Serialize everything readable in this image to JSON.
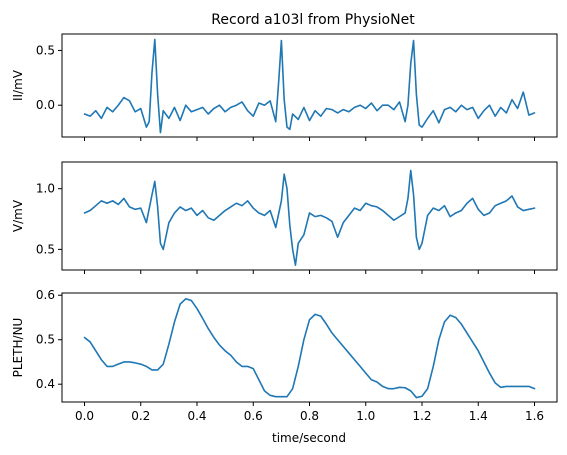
{
  "chart_data": {
    "type": "line",
    "title": "Record a103l from PhysioNet",
    "xlabel": "time/second",
    "xlim": [
      -0.08,
      1.68
    ],
    "x_ticks": [
      0.0,
      0.2,
      0.4,
      0.6,
      0.8,
      1.0,
      1.2,
      1.4,
      1.6
    ],
    "x_tick_labels": [
      "0.0",
      "0.2",
      "0.4",
      "0.6",
      "0.8",
      "1.0",
      "1.2",
      "1.4",
      "1.6"
    ],
    "line_color": "#1f77b4",
    "grid": false,
    "panels": [
      {
        "ylabel": "II/mV",
        "ylim": [
          -0.29,
          0.65
        ],
        "y_ticks": [
          0.0,
          0.5
        ],
        "y_tick_labels": [
          "0.0",
          "0.5"
        ],
        "series": [
          {
            "x": [
              0.0,
              0.02,
              0.04,
              0.06,
              0.08,
              0.1,
              0.12,
              0.14,
              0.16,
              0.18,
              0.2,
              0.22,
              0.23,
              0.24,
              0.25,
              0.26,
              0.27,
              0.28,
              0.3,
              0.32,
              0.34,
              0.36,
              0.38,
              0.4,
              0.42,
              0.44,
              0.46,
              0.48,
              0.5,
              0.52,
              0.54,
              0.56,
              0.58,
              0.6,
              0.62,
              0.64,
              0.66,
              0.68,
              0.69,
              0.7,
              0.71,
              0.72,
              0.73,
              0.74,
              0.76,
              0.78,
              0.8,
              0.82,
              0.84,
              0.86,
              0.88,
              0.9,
              0.92,
              0.94,
              0.96,
              0.98,
              1.0,
              1.02,
              1.04,
              1.06,
              1.08,
              1.1,
              1.12,
              1.14,
              1.15,
              1.16,
              1.17,
              1.18,
              1.19,
              1.2,
              1.22,
              1.24,
              1.26,
              1.28,
              1.3,
              1.32,
              1.34,
              1.36,
              1.38,
              1.4,
              1.42,
              1.44,
              1.46,
              1.48,
              1.5,
              1.52,
              1.54,
              1.56,
              1.58,
              1.6
            ],
            "y": [
              -0.08,
              -0.1,
              -0.05,
              -0.12,
              -0.02,
              -0.06,
              0.0,
              0.07,
              0.04,
              -0.06,
              -0.03,
              -0.2,
              -0.15,
              0.3,
              0.6,
              0.1,
              -0.25,
              -0.05,
              -0.12,
              -0.02,
              -0.14,
              0.0,
              -0.06,
              -0.04,
              -0.02,
              -0.08,
              -0.03,
              0.0,
              -0.06,
              -0.02,
              0.0,
              0.03,
              -0.05,
              -0.1,
              0.02,
              0.0,
              0.04,
              -0.15,
              0.2,
              0.59,
              0.05,
              -0.2,
              -0.22,
              -0.08,
              -0.13,
              -0.02,
              -0.14,
              -0.05,
              -0.1,
              -0.03,
              -0.04,
              -0.07,
              -0.04,
              -0.06,
              -0.02,
              0.0,
              -0.03,
              0.02,
              -0.05,
              0.0,
              0.0,
              -0.04,
              0.03,
              -0.15,
              0.0,
              0.38,
              0.59,
              0.1,
              -0.18,
              -0.2,
              -0.12,
              -0.05,
              -0.16,
              -0.04,
              -0.02,
              -0.06,
              0.0,
              -0.04,
              -0.02,
              -0.12,
              -0.05,
              0.0,
              -0.1,
              -0.02,
              -0.07,
              0.05,
              -0.03,
              0.12,
              -0.09,
              -0.07
            ]
          }
        ]
      },
      {
        "ylabel": "V/mV",
        "ylim": [
          0.33,
          1.22
        ],
        "y_ticks": [
          0.5,
          1.0
        ],
        "y_tick_labels": [
          "0.5",
          "1.0"
        ],
        "series": [
          {
            "x": [
              0.0,
              0.02,
              0.04,
              0.06,
              0.08,
              0.1,
              0.12,
              0.14,
              0.16,
              0.18,
              0.2,
              0.22,
              0.24,
              0.25,
              0.26,
              0.27,
              0.28,
              0.3,
              0.32,
              0.34,
              0.36,
              0.38,
              0.4,
              0.42,
              0.44,
              0.46,
              0.48,
              0.5,
              0.52,
              0.54,
              0.56,
              0.58,
              0.6,
              0.62,
              0.64,
              0.66,
              0.68,
              0.7,
              0.71,
              0.72,
              0.73,
              0.74,
              0.75,
              0.76,
              0.78,
              0.8,
              0.82,
              0.84,
              0.86,
              0.88,
              0.9,
              0.92,
              0.94,
              0.96,
              0.98,
              1.0,
              1.02,
              1.04,
              1.06,
              1.08,
              1.1,
              1.12,
              1.14,
              1.15,
              1.16,
              1.17,
              1.18,
              1.19,
              1.2,
              1.22,
              1.24,
              1.26,
              1.28,
              1.3,
              1.32,
              1.34,
              1.36,
              1.38,
              1.4,
              1.42,
              1.44,
              1.46,
              1.48,
              1.5,
              1.52,
              1.54,
              1.56,
              1.58,
              1.6
            ],
            "y": [
              0.8,
              0.82,
              0.86,
              0.9,
              0.88,
              0.9,
              0.87,
              0.92,
              0.85,
              0.83,
              0.84,
              0.72,
              0.95,
              1.06,
              0.85,
              0.55,
              0.5,
              0.72,
              0.8,
              0.85,
              0.82,
              0.84,
              0.78,
              0.82,
              0.76,
              0.74,
              0.78,
              0.82,
              0.85,
              0.88,
              0.86,
              0.9,
              0.84,
              0.8,
              0.78,
              0.82,
              0.68,
              0.9,
              1.12,
              1.0,
              0.7,
              0.5,
              0.37,
              0.55,
              0.62,
              0.8,
              0.77,
              0.78,
              0.76,
              0.73,
              0.6,
              0.72,
              0.78,
              0.84,
              0.82,
              0.88,
              0.86,
              0.85,
              0.82,
              0.78,
              0.74,
              0.77,
              0.8,
              0.92,
              1.15,
              0.95,
              0.6,
              0.5,
              0.55,
              0.78,
              0.84,
              0.82,
              0.86,
              0.77,
              0.8,
              0.82,
              0.88,
              0.92,
              0.83,
              0.78,
              0.8,
              0.86,
              0.88,
              0.9,
              0.94,
              0.85,
              0.82,
              0.83,
              0.84
            ]
          }
        ]
      },
      {
        "ylabel": "PLETH/NU",
        "ylim": [
          0.36,
          0.605
        ],
        "y_ticks": [
          0.4,
          0.5,
          0.6
        ],
        "y_tick_labels": [
          "0.4",
          "0.5",
          "0.6"
        ],
        "series": [
          {
            "x": [
              0.0,
              0.02,
              0.04,
              0.06,
              0.08,
              0.1,
              0.12,
              0.14,
              0.16,
              0.18,
              0.2,
              0.22,
              0.24,
              0.26,
              0.28,
              0.3,
              0.32,
              0.34,
              0.36,
              0.38,
              0.4,
              0.42,
              0.44,
              0.46,
              0.48,
              0.5,
              0.52,
              0.54,
              0.56,
              0.58,
              0.6,
              0.62,
              0.64,
              0.66,
              0.68,
              0.7,
              0.72,
              0.74,
              0.76,
              0.78,
              0.8,
              0.82,
              0.84,
              0.86,
              0.88,
              0.9,
              0.92,
              0.94,
              0.96,
              0.98,
              1.0,
              1.02,
              1.04,
              1.06,
              1.08,
              1.1,
              1.12,
              1.14,
              1.16,
              1.18,
              1.2,
              1.22,
              1.24,
              1.26,
              1.28,
              1.3,
              1.32,
              1.34,
              1.36,
              1.38,
              1.4,
              1.42,
              1.44,
              1.46,
              1.48,
              1.5,
              1.52,
              1.54,
              1.56,
              1.58,
              1.6
            ],
            "y": [
              0.505,
              0.495,
              0.475,
              0.455,
              0.44,
              0.44,
              0.445,
              0.45,
              0.45,
              0.448,
              0.445,
              0.44,
              0.432,
              0.432,
              0.445,
              0.49,
              0.54,
              0.58,
              0.592,
              0.588,
              0.57,
              0.548,
              0.525,
              0.505,
              0.488,
              0.475,
              0.465,
              0.45,
              0.44,
              0.44,
              0.435,
              0.41,
              0.385,
              0.375,
              0.372,
              0.372,
              0.372,
              0.39,
              0.44,
              0.5,
              0.545,
              0.557,
              0.553,
              0.535,
              0.515,
              0.5,
              0.485,
              0.47,
              0.455,
              0.44,
              0.425,
              0.41,
              0.405,
              0.395,
              0.39,
              0.39,
              0.393,
              0.392,
              0.385,
              0.37,
              0.373,
              0.39,
              0.44,
              0.5,
              0.54,
              0.555,
              0.55,
              0.535,
              0.515,
              0.495,
              0.475,
              0.45,
              0.425,
              0.403,
              0.393,
              0.395,
              0.395,
              0.395,
              0.395,
              0.395,
              0.39
            ]
          }
        ]
      }
    ]
  }
}
